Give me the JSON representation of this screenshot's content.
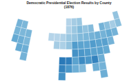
{
  "chart_data": {
    "type": "choropleth",
    "title": "Democratic Presidential Election Results by County (1876)",
    "lat": [
      47.5,
      44.5,
      41.5,
      38.5,
      35.5,
      32.5,
      29.5,
      26.5
    ],
    "lon": [
      -122.5,
      -119.5,
      -116.5,
      -113.5,
      -110.5,
      -107.5,
      -104.5,
      -101.5,
      -98.5,
      -95.5,
      -92.5,
      -89.5,
      -86.5,
      -83.5,
      -80.5,
      -77.5,
      -74.5,
      -71.5,
      -68.5
    ],
    "values": [
      [
        null,
        null,
        null,
        null,
        null,
        null,
        null,
        null,
        null,
        30,
        35,
        38,
        null,
        null,
        null,
        null,
        null,
        null,
        40
      ],
      [
        48,
        46,
        null,
        null,
        null,
        null,
        null,
        null,
        null,
        32,
        38,
        45,
        40,
        44,
        null,
        48,
        42,
        35,
        42
      ],
      [
        47,
        46,
        47,
        null,
        null,
        null,
        30,
        30,
        32,
        38,
        40,
        45,
        46,
        48,
        50,
        48,
        52,
        48,
        null
      ],
      [
        52,
        50,
        46,
        null,
        null,
        null,
        null,
        35,
        33,
        40,
        58,
        55,
        54,
        58,
        55,
        56,
        48,
        null,
        null
      ],
      [
        null,
        52,
        50,
        null,
        null,
        null,
        null,
        null,
        null,
        null,
        62,
        60,
        58,
        55,
        55,
        52,
        null,
        null,
        null
      ],
      [
        null,
        null,
        48,
        null,
        null,
        null,
        null,
        null,
        72,
        70,
        55,
        65,
        60,
        68,
        50,
        null,
        null,
        null,
        null
      ],
      [
        null,
        null,
        null,
        null,
        null,
        null,
        null,
        null,
        68,
        60,
        50,
        45,
        null,
        50,
        48,
        null,
        null,
        null,
        null
      ],
      [
        null,
        null,
        null,
        null,
        null,
        null,
        null,
        null,
        62,
        null,
        null,
        null,
        null,
        null,
        50,
        null,
        null,
        null,
        null
      ]
    ],
    "zlim": [
      0,
      100
    ]
  }
}
